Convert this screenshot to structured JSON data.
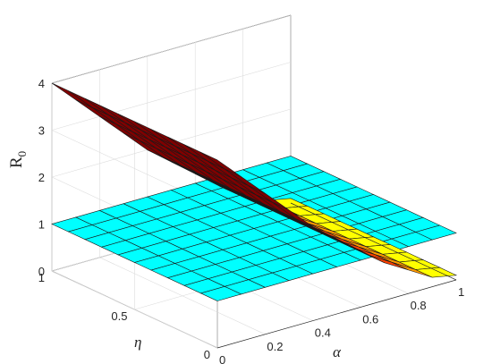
{
  "chart_data": {
    "type": "surface3d",
    "title": "",
    "xlabel": "α",
    "ylabel": "η",
    "zlabel": "R",
    "zlabel_subscript": "0",
    "xlim": [
      0,
      1
    ],
    "ylim": [
      0,
      1
    ],
    "zlim": [
      0,
      4
    ],
    "x_ticks": [
      "0",
      "0.2",
      "0.4",
      "0.6",
      "0.8",
      "1"
    ],
    "y_ticks": [
      "0",
      "0.5",
      "1"
    ],
    "z_ticks": [
      "0",
      "1",
      "2",
      "3",
      "4"
    ],
    "grid": true,
    "x": [
      0,
      0.1,
      0.2,
      0.3,
      0.4,
      0.5,
      0.6,
      0.7,
      0.8,
      0.9,
      1.0
    ],
    "y": [
      0,
      0.1,
      0.2,
      0.3,
      0.4,
      0.5,
      0.6,
      0.7,
      0.8,
      0.9,
      1.0
    ],
    "series": [
      {
        "plane_value": 1,
        "color": "#00FFFF"
      },
      {
        "values_x_profile": [
          4.0,
          3.5,
          3.0,
          2.5,
          2.0,
          1.6,
          1.2,
          0.8,
          0.5,
          0.2,
          0.1
        ],
        "colors": [
          "#800000",
          "#FF4000",
          "#FF9900",
          "#FFFF00",
          "#C8FF3C"
        ]
      }
    ]
  }
}
